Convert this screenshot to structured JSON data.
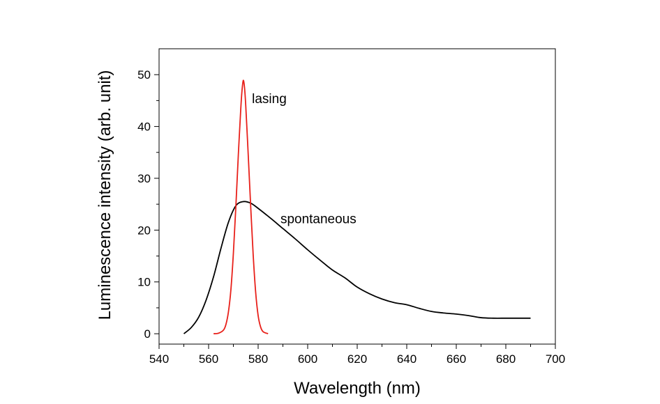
{
  "chart_data": {
    "type": "line",
    "title": "",
    "xlabel": "Wavelength (nm)",
    "ylabel": "Luminescence intensity (arb. unit)",
    "xlim": [
      540,
      700
    ],
    "ylim": [
      -2,
      55
    ],
    "xticks": [
      540,
      560,
      580,
      600,
      620,
      640,
      660,
      680,
      700
    ],
    "yticks": [
      0,
      10,
      20,
      30,
      40,
      50
    ],
    "grid": false,
    "legend": "none",
    "series": [
      {
        "name": "spontaneous",
        "color": "#000000",
        "x": [
          550,
          553,
          556,
          559,
          562,
          565,
          568,
          571,
          574,
          577,
          580,
          585,
          590,
          595,
          600,
          605,
          610,
          615,
          620,
          625,
          630,
          635,
          640,
          645,
          650,
          655,
          660,
          665,
          670,
          675,
          680,
          685,
          690
        ],
        "y": [
          0,
          1.2,
          3.2,
          6.5,
          11,
          16.5,
          21.5,
          24.7,
          25.5,
          25.2,
          24.2,
          22.3,
          20.3,
          18.3,
          16.2,
          14.2,
          12.3,
          10.8,
          9.0,
          7.7,
          6.7,
          6.0,
          5.6,
          4.9,
          4.3,
          4.0,
          3.8,
          3.5,
          3.1,
          3.0,
          3.0,
          3.0,
          3.0
        ]
      },
      {
        "name": "lasing",
        "color": "#e8201a",
        "x": [
          562,
          564,
          566,
          567,
          568,
          569,
          570,
          571,
          572,
          573,
          573.5,
          574,
          574.5,
          575,
          576,
          577,
          578,
          579,
          580,
          581,
          582,
          584
        ],
        "y": [
          0,
          0.1,
          0.7,
          1.8,
          4.2,
          8.5,
          15.5,
          24.5,
          34.5,
          43.5,
          47,
          48.9,
          47.5,
          44,
          34.5,
          24.5,
          15.2,
          8.0,
          3.5,
          1.3,
          0.4,
          0
        ]
      }
    ],
    "annotations": [
      {
        "text": "lasing",
        "x": 577.5,
        "y": 44.5
      },
      {
        "text": "spontaneous",
        "x": 589,
        "y": 21.3
      }
    ]
  }
}
